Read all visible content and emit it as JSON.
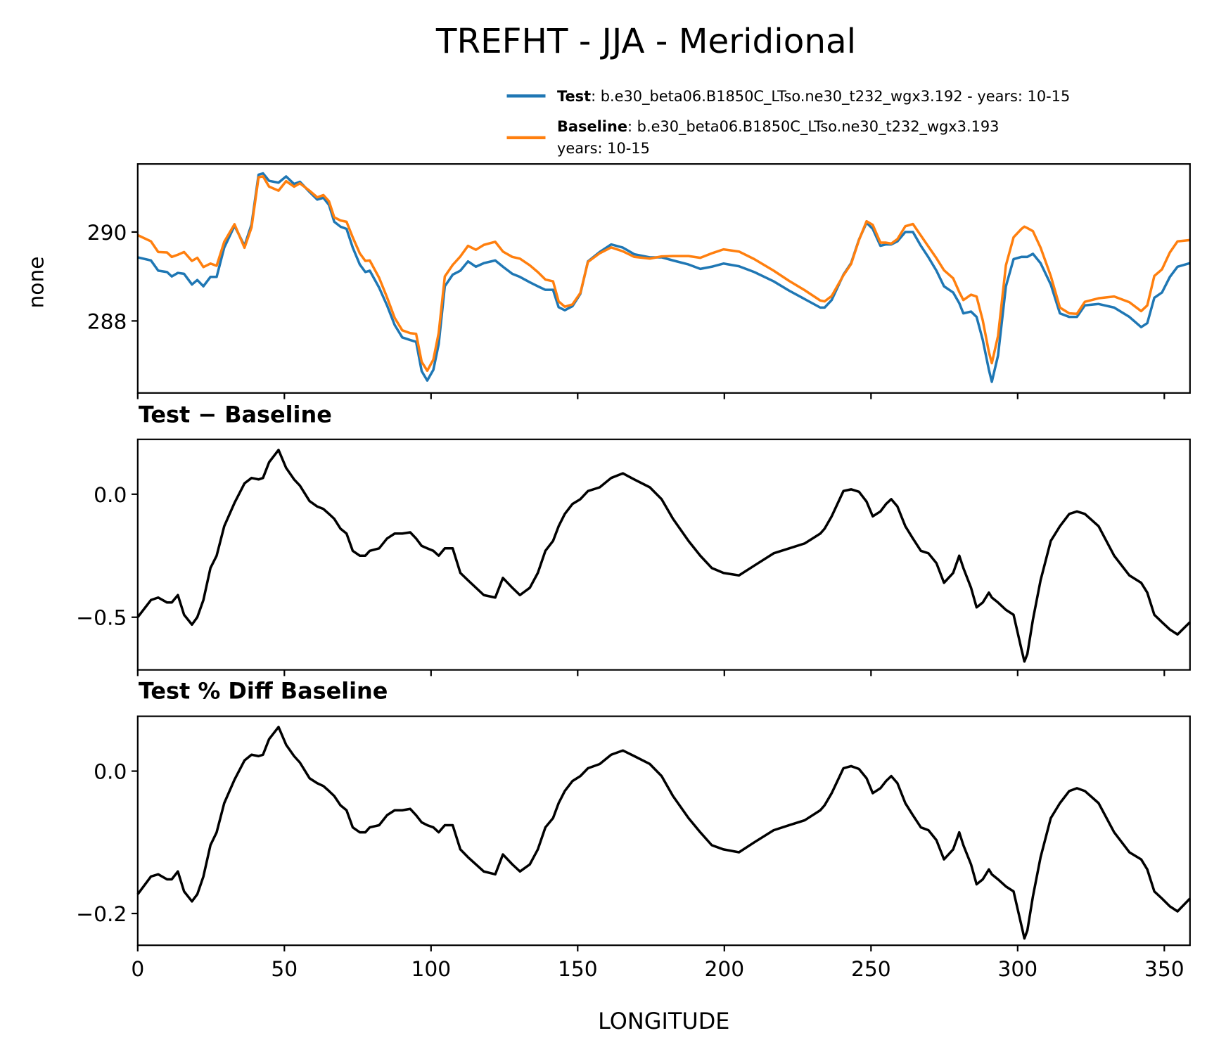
{
  "chart_data": [
    {
      "type": "line",
      "title": "TREFHT - JJA - Meridional",
      "xlabel": "LONGITUDE",
      "ylabel": "none",
      "xlim": [
        0,
        358.75
      ],
      "ylim": [
        286.38,
        291.53
      ],
      "xticks": [
        0,
        50,
        100,
        150,
        200,
        250,
        300,
        350
      ],
      "yticks": [
        288,
        290
      ],
      "ytick_labels": [
        "288",
        "290"
      ],
      "legend_placement": "above-right",
      "legend": [
        {
          "name": "Test",
          "desc": ": b.e30_beta06.B1850C_LTso.ne30_t232_wgx3.192 - years: 10-15",
          "color": "#1f77b4"
        },
        {
          "name": "Baseline",
          "desc": ": b.e30_beta06.B1850C_LTso.ne30_t232_wgx3.193",
          "desc2": "years: 10-15",
          "color": "#ff7f0e"
        }
      ],
      "x": [
        0,
        4.5,
        7,
        10,
        11.6,
        13.7,
        15.8,
        18.5,
        20.3,
        22.4,
        24.8,
        26.9,
        29.5,
        33,
        36.4,
        38.8,
        41.2,
        42.7,
        44.8,
        48,
        50.6,
        53.3,
        55.3,
        58.6,
        61.2,
        63.3,
        65.2,
        67,
        69.1,
        71.2,
        73.3,
        75.7,
        77.6,
        79.1,
        82.3,
        85,
        87.6,
        90.2,
        92.9,
        94.9,
        96.8,
        98.7,
        100.8,
        102.6,
        104.7,
        107.4,
        110,
        112.6,
        115.3,
        118,
        121.9,
        124.5,
        127.7,
        130.3,
        133.7,
        136.4,
        139,
        141.6,
        143.5,
        145.6,
        148.2,
        150.9,
        153.5,
        157.5,
        161.4,
        165.4,
        169.3,
        174.6,
        178.6,
        182.5,
        187.8,
        191.8,
        195.7,
        199.7,
        205,
        210.2,
        216.8,
        222.1,
        227.4,
        232.7,
        234.2,
        236.6,
        240.6,
        243.2,
        245.9,
        248.5,
        250.6,
        253.2,
        255.1,
        256.9,
        259,
        261.7,
        264.3,
        267,
        269.6,
        272.3,
        274.9,
        278,
        280.1,
        281.5,
        284.1,
        286,
        288.1,
        290.2,
        291.2,
        293.3,
        296,
        298.6,
        301.3,
        302.3,
        303.3,
        305.2,
        307.8,
        311.3,
        314.4,
        317.6,
        320.2,
        322.9,
        327.6,
        332.9,
        338.1,
        342.1,
        344.2,
        346.6,
        349.2,
        351.9,
        354.5,
        358.75
      ],
      "series": [
        {
          "name": "Test",
          "values": [
            289.43,
            289.36,
            289.13,
            289.1,
            289.0,
            289.08,
            289.06,
            288.82,
            288.92,
            288.78,
            288.99,
            288.99,
            289.65,
            290.14,
            289.69,
            290.17,
            291.29,
            291.32,
            291.15,
            291.11,
            291.25,
            291.08,
            291.13,
            290.9,
            290.73,
            290.77,
            290.61,
            290.23,
            290.12,
            290.07,
            289.65,
            289.27,
            289.1,
            289.13,
            288.75,
            288.35,
            287.91,
            287.63,
            287.57,
            287.53,
            286.87,
            286.66,
            286.9,
            287.48,
            288.78,
            289.04,
            289.13,
            289.34,
            289.22,
            289.3,
            289.36,
            289.22,
            289.06,
            288.99,
            288.87,
            288.78,
            288.7,
            288.7,
            288.31,
            288.24,
            288.33,
            288.61,
            289.34,
            289.55,
            289.72,
            289.65,
            289.5,
            289.43,
            289.43,
            289.36,
            289.27,
            289.17,
            289.22,
            289.29,
            289.23,
            289.1,
            288.89,
            288.68,
            288.49,
            288.3,
            288.3,
            288.47,
            289.04,
            289.3,
            289.83,
            290.21,
            290.07,
            289.69,
            289.72,
            289.72,
            289.79,
            290.0,
            290.0,
            289.69,
            289.43,
            289.13,
            288.78,
            288.64,
            288.4,
            288.17,
            288.21,
            288.09,
            287.57,
            286.9,
            286.63,
            287.22,
            288.78,
            289.39,
            289.44,
            289.44,
            289.44,
            289.51,
            289.3,
            288.82,
            288.17,
            288.09,
            288.09,
            288.35,
            288.38,
            288.3,
            288.09,
            287.86,
            287.95,
            288.52,
            288.64,
            288.99,
            289.22,
            289.3
          ]
        },
        {
          "name": "Baseline",
          "values": [
            289.93,
            289.79,
            289.55,
            289.54,
            289.44,
            289.49,
            289.55,
            289.35,
            289.42,
            289.21,
            289.29,
            289.24,
            289.78,
            290.175,
            289.646,
            290.104,
            291.23,
            291.254,
            291.02,
            290.93,
            291.143,
            291.02,
            291.095,
            290.928,
            290.78,
            290.83,
            290.69,
            290.33,
            290.26,
            290.23,
            289.88,
            289.52,
            289.35,
            289.36,
            288.97,
            288.53,
            288.07,
            287.79,
            287.725,
            287.71,
            287.08,
            286.88,
            287.13,
            287.73,
            289.0,
            289.26,
            289.45,
            289.69,
            289.6,
            289.71,
            289.78,
            289.56,
            289.44,
            289.4,
            289.25,
            289.1,
            288.93,
            288.89,
            288.44,
            288.32,
            288.37,
            288.63,
            289.327,
            289.522,
            289.654,
            289.565,
            289.44,
            289.402,
            289.45,
            289.46,
            289.46,
            289.42,
            289.52,
            289.61,
            289.56,
            289.39,
            289.13,
            288.9,
            288.69,
            288.46,
            288.44,
            288.56,
            289.027,
            289.28,
            289.82,
            290.24,
            290.16,
            289.76,
            289.76,
            289.74,
            289.84,
            290.13,
            290.18,
            289.92,
            289.67,
            289.41,
            289.14,
            288.96,
            288.65,
            288.47,
            288.59,
            288.55,
            288.01,
            287.3,
            287.05,
            287.66,
            289.25,
            289.88,
            290.07,
            290.12,
            290.09,
            290.02,
            289.65,
            289.01,
            288.3,
            288.17,
            288.16,
            288.43,
            288.51,
            288.55,
            288.42,
            288.22,
            288.35,
            289.01,
            289.16,
            289.54,
            289.79,
            289.82
          ]
        }
      ]
    },
    {
      "type": "line",
      "title": "Test − Baseline",
      "xlim": [
        0,
        358.75
      ],
      "ylim": [
        -0.714,
        0.223
      ],
      "yticks": [
        -0.5,
        0.0
      ],
      "ytick_labels": [
        "−0.5",
        "0.0"
      ],
      "series": [
        {
          "name": "Test − Baseline",
          "color": "#000000",
          "values": [
            -0.5,
            -0.43,
            -0.42,
            -0.44,
            -0.44,
            -0.41,
            -0.49,
            -0.53,
            -0.5,
            -0.43,
            -0.3,
            -0.25,
            -0.13,
            -0.035,
            0.044,
            0.066,
            0.06,
            0.066,
            0.13,
            0.18,
            0.107,
            0.06,
            0.035,
            -0.028,
            -0.05,
            -0.06,
            -0.08,
            -0.1,
            -0.14,
            -0.16,
            -0.23,
            -0.25,
            -0.25,
            -0.23,
            -0.22,
            -0.18,
            -0.16,
            -0.16,
            -0.155,
            -0.18,
            -0.21,
            -0.22,
            -0.23,
            -0.25,
            -0.22,
            -0.22,
            -0.32,
            -0.35,
            -0.38,
            -0.41,
            -0.42,
            -0.34,
            -0.38,
            -0.41,
            -0.38,
            -0.32,
            -0.23,
            -0.19,
            -0.13,
            -0.08,
            -0.04,
            -0.02,
            0.013,
            0.028,
            0.066,
            0.085,
            0.06,
            0.028,
            -0.02,
            -0.1,
            -0.19,
            -0.25,
            -0.3,
            -0.32,
            -0.33,
            -0.29,
            -0.24,
            -0.22,
            -0.2,
            -0.16,
            -0.14,
            -0.09,
            0.013,
            0.02,
            0.01,
            -0.03,
            -0.09,
            -0.07,
            -0.04,
            -0.02,
            -0.05,
            -0.13,
            -0.18,
            -0.23,
            -0.24,
            -0.28,
            -0.36,
            -0.32,
            -0.25,
            -0.3,
            -0.38,
            -0.46,
            -0.44,
            -0.4,
            -0.42,
            -0.44,
            -0.47,
            -0.49,
            -0.63,
            -0.68,
            -0.65,
            -0.51,
            -0.35,
            -0.19,
            -0.13,
            -0.08,
            -0.07,
            -0.08,
            -0.13,
            -0.25,
            -0.33,
            -0.36,
            -0.4,
            -0.49,
            -0.52,
            -0.55,
            -0.57,
            -0.52
          ]
        }
      ]
    },
    {
      "type": "line",
      "title": "Test % Diff Baseline",
      "xlabel": "LONGITUDE",
      "xlim": [
        0,
        358.75
      ],
      "ylim": [
        -0.2446,
        0.077
      ],
      "xticks": [
        0,
        50,
        100,
        150,
        200,
        250,
        300,
        350
      ],
      "xtick_labels": [
        "0",
        "50",
        "100",
        "150",
        "200",
        "250",
        "300",
        "350"
      ],
      "yticks": [
        -0.2,
        0.0
      ],
      "ytick_labels": [
        "−0.2",
        "0.0"
      ],
      "series": [
        {
          "name": "Test % Diff Baseline",
          "color": "#000000",
          "values": [
            -0.173,
            -0.148,
            -0.145,
            -0.152,
            -0.152,
            -0.141,
            -0.169,
            -0.183,
            -0.173,
            -0.148,
            -0.104,
            -0.086,
            -0.045,
            -0.012,
            0.015,
            0.023,
            0.021,
            0.023,
            0.045,
            0.062,
            0.037,
            0.021,
            0.012,
            -0.01,
            -0.017,
            -0.021,
            -0.028,
            -0.035,
            -0.048,
            -0.055,
            -0.079,
            -0.086,
            -0.086,
            -0.079,
            -0.076,
            -0.062,
            -0.055,
            -0.055,
            -0.053,
            -0.062,
            -0.072,
            -0.076,
            -0.079,
            -0.086,
            -0.076,
            -0.076,
            -0.11,
            -0.121,
            -0.131,
            -0.141,
            -0.145,
            -0.117,
            -0.131,
            -0.141,
            -0.131,
            -0.11,
            -0.079,
            -0.066,
            -0.045,
            -0.028,
            -0.014,
            -0.007,
            0.004,
            0.01,
            0.023,
            0.029,
            0.021,
            0.01,
            -0.007,
            -0.035,
            -0.066,
            -0.086,
            -0.104,
            -0.11,
            -0.114,
            -0.1,
            -0.083,
            -0.076,
            -0.069,
            -0.055,
            -0.048,
            -0.031,
            0.004,
            0.007,
            0.003,
            -0.01,
            -0.031,
            -0.024,
            -0.014,
            -0.007,
            -0.017,
            -0.045,
            -0.062,
            -0.079,
            -0.083,
            -0.097,
            -0.124,
            -0.11,
            -0.086,
            -0.104,
            -0.131,
            -0.159,
            -0.152,
            -0.138,
            -0.145,
            -0.152,
            -0.162,
            -0.169,
            -0.217,
            -0.235,
            -0.224,
            -0.176,
            -0.121,
            -0.066,
            -0.045,
            -0.028,
            -0.024,
            -0.028,
            -0.045,
            -0.086,
            -0.114,
            -0.124,
            -0.138,
            -0.169,
            -0.179,
            -0.19,
            -0.197,
            -0.179
          ]
        }
      ]
    }
  ]
}
